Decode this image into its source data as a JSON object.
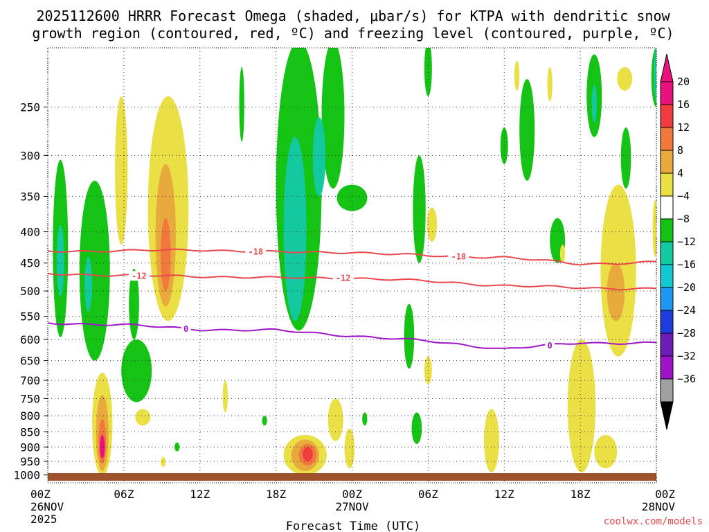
{
  "chart_data": {
    "type": "heatmap",
    "title_line1": "2025112600 HRRR Forecast Omega (shaded, μbar/s) for KTPA with dendritic snow",
    "title_line2": "growth region (contoured, red, ºC) and freezing level (contoured, purple, ºC)",
    "xlabel": "Forecast Time (UTC)",
    "credit": "coolwx.com/models",
    "x_range_hours": [
      0,
      48
    ],
    "x_ticks": [
      {
        "h": 0,
        "label": "00Z",
        "sub1": "26NOV",
        "sub2": "2025"
      },
      {
        "h": 6,
        "label": "06Z"
      },
      {
        "h": 12,
        "label": "12Z"
      },
      {
        "h": 18,
        "label": "18Z"
      },
      {
        "h": 24,
        "label": "00Z",
        "sub1": "27NOV"
      },
      {
        "h": 30,
        "label": "06Z"
      },
      {
        "h": 36,
        "label": "12Z"
      },
      {
        "h": 42,
        "label": "18Z"
      },
      {
        "h": 48,
        "label": "00Z",
        "sub1": "28NOV"
      }
    ],
    "y_ticks_hpa": [
      250,
      300,
      350,
      400,
      450,
      500,
      550,
      600,
      650,
      700,
      750,
      800,
      850,
      900,
      950,
      1000
    ],
    "y_range_hpa": [
      200,
      1030
    ],
    "colorbar": {
      "labels": [
        "20",
        "16",
        "12",
        "8",
        "4",
        "−4",
        "−8",
        "−12",
        "−16",
        "−20",
        "−24",
        "−28",
        "−32",
        "−36"
      ],
      "bins": [
        {
          "lo": 20,
          "hi": 24,
          "color": "#e8127c"
        },
        {
          "lo": 16,
          "hi": 20,
          "color": "#f03c3c"
        },
        {
          "lo": 12,
          "hi": 16,
          "color": "#f0783c"
        },
        {
          "lo": 8,
          "hi": 12,
          "color": "#e8aa3c"
        },
        {
          "lo": 4,
          "hi": 8,
          "color": "#ebdf46"
        },
        {
          "lo": -4,
          "hi": 4,
          "color": "#ffffff"
        },
        {
          "lo": -8,
          "hi": -4,
          "color": "#14c314"
        },
        {
          "lo": -12,
          "hi": -8,
          "color": "#14c8a0"
        },
        {
          "lo": -16,
          "hi": -12,
          "color": "#14c8d2"
        },
        {
          "lo": -20,
          "hi": -16,
          "color": "#1e96f0"
        },
        {
          "lo": -24,
          "hi": -20,
          "color": "#1e3cdc"
        },
        {
          "lo": -28,
          "hi": -24,
          "color": "#6e1eb4"
        },
        {
          "lo": -32,
          "hi": -28,
          "color": "#a014c8"
        },
        {
          "lo": -36,
          "hi": -32,
          "color": "#a0a0a0"
        }
      ],
      "top_arrow_color": "#e8127c",
      "bottom_arrow_color": "#000000"
    },
    "contours": [
      {
        "name": "minus18",
        "label": "-18",
        "color": "#e8484e",
        "x": [
          0,
          6,
          12,
          18,
          24,
          30,
          36,
          42,
          48
        ],
        "p": [
          430,
          430,
          428,
          432,
          432,
          438,
          440,
          452,
          448
        ],
        "label_hours": [
          16.4,
          32.4
        ]
      },
      {
        "name": "minus12",
        "label": "-12",
        "color": "#e8484e",
        "x": [
          0,
          6,
          12,
          18,
          24,
          30,
          36,
          42,
          48
        ],
        "p": [
          468,
          472,
          473,
          476,
          476,
          482,
          490,
          494,
          496
        ],
        "label_hours": [
          7.2,
          23.3
        ]
      },
      {
        "name": "zero",
        "label": "0",
        "color": "#a014c8",
        "x": [
          0,
          6,
          12,
          18,
          24,
          30,
          36,
          42,
          48
        ],
        "p": [
          564,
          568,
          578,
          580,
          592,
          604,
          622,
          608,
          608
        ],
        "label_hours": [
          10.9,
          39.6
        ]
      }
    ],
    "omega_regions": [
      {
        "value": -6,
        "t": 1.0,
        "p0": 305,
        "p1": 595,
        "w": 0.6
      },
      {
        "value": -10,
        "t": 1.0,
        "p0": 390,
        "p1": 510,
        "w": 0.3
      },
      {
        "value": -6,
        "t": 3.7,
        "p0": 330,
        "p1": 650,
        "w": 1.2
      },
      {
        "value": -10,
        "t": 3.2,
        "p0": 440,
        "p1": 540,
        "w": 0.3
      },
      {
        "value": -6,
        "t": 7.0,
        "p0": 600,
        "p1": 760,
        "w": 1.2
      },
      {
        "value": -6,
        "t": 6.8,
        "p0": 460,
        "p1": 600,
        "w": 0.4
      },
      {
        "value": -6,
        "t": 15.3,
        "p0": 215,
        "p1": 285,
        "w": 0.2
      },
      {
        "value": -6,
        "t": 19.8,
        "p0": 195,
        "p1": 580,
        "w": 1.8
      },
      {
        "value": -6,
        "t": 22.5,
        "p0": 195,
        "p1": 340,
        "w": 0.9
      },
      {
        "value": -10,
        "t": 19.5,
        "p0": 280,
        "p1": 560,
        "w": 0.9
      },
      {
        "value": -10,
        "t": 21.4,
        "p0": 260,
        "p1": 350,
        "w": 0.5
      },
      {
        "value": -6,
        "t": 24.0,
        "p0": 335,
        "p1": 370,
        "w": 1.2
      },
      {
        "value": -6,
        "t": 28.5,
        "p0": 525,
        "p1": 670,
        "w": 0.4
      },
      {
        "value": -6,
        "t": 29.3,
        "p0": 300,
        "p1": 450,
        "w": 0.5
      },
      {
        "value": -6,
        "t": 30.0,
        "p0": 195,
        "p1": 240,
        "w": 0.3
      },
      {
        "value": -6,
        "t": 36.0,
        "p0": 270,
        "p1": 310,
        "w": 0.3
      },
      {
        "value": -6,
        "t": 37.8,
        "p0": 225,
        "p1": 330,
        "w": 0.6
      },
      {
        "value": -6,
        "t": 40.2,
        "p0": 380,
        "p1": 450,
        "w": 0.6
      },
      {
        "value": -6,
        "t": 43.1,
        "p0": 205,
        "p1": 280,
        "w": 0.6
      },
      {
        "value": -10,
        "t": 43.1,
        "p0": 230,
        "p1": 265,
        "w": 0.2
      },
      {
        "value": -6,
        "t": 45.6,
        "p0": 270,
        "p1": 340,
        "w": 0.4
      },
      {
        "value": -6,
        "t": 48.0,
        "p0": 200,
        "p1": 250,
        "w": 0.4
      },
      {
        "value": -10,
        "t": 48.0,
        "p0": 200,
        "p1": 245,
        "w": 0.2
      },
      {
        "value": -6,
        "t": 29.1,
        "p0": 790,
        "p1": 890,
        "w": 0.4
      },
      {
        "value": -6,
        "t": 25.0,
        "p0": 790,
        "p1": 830,
        "w": 0.2
      },
      {
        "value": -6,
        "t": 17.1,
        "p0": 800,
        "p1": 830,
        "w": 0.2
      },
      {
        "value": -6,
        "t": 10.2,
        "p0": 885,
        "p1": 915,
        "w": 0.2
      },
      {
        "value": 6,
        "t": 5.8,
        "p0": 240,
        "p1": 420,
        "w": 0.5
      },
      {
        "value": 6,
        "t": 9.5,
        "p0": 240,
        "p1": 560,
        "w": 1.6
      },
      {
        "value": 10,
        "t": 9.3,
        "p0": 310,
        "p1": 530,
        "w": 0.8
      },
      {
        "value": 14,
        "t": 9.3,
        "p0": 380,
        "p1": 500,
        "w": 0.4
      },
      {
        "value": 6,
        "t": 4.3,
        "p0": 680,
        "p1": 1005,
        "w": 0.8
      },
      {
        "value": 10,
        "t": 4.3,
        "p0": 740,
        "p1": 985,
        "w": 0.5
      },
      {
        "value": 14,
        "t": 4.3,
        "p0": 810,
        "p1": 960,
        "w": 0.3
      },
      {
        "value": 22,
        "t": 4.3,
        "p0": 860,
        "p1": 940,
        "w": 0.2
      },
      {
        "value": 6,
        "t": 7.5,
        "p0": 780,
        "p1": 830,
        "w": 0.6
      },
      {
        "value": 6,
        "t": 9.1,
        "p0": 935,
        "p1": 970,
        "w": 0.2
      },
      {
        "value": 6,
        "t": 14.0,
        "p0": 700,
        "p1": 790,
        "w": 0.2
      },
      {
        "value": 6,
        "t": 20.3,
        "p0": 860,
        "p1": 1000,
        "w": 1.7
      },
      {
        "value": 10,
        "t": 20.3,
        "p0": 875,
        "p1": 985,
        "w": 1.1
      },
      {
        "value": 14,
        "t": 20.5,
        "p0": 890,
        "p1": 965,
        "w": 0.7
      },
      {
        "value": 18,
        "t": 20.5,
        "p0": 900,
        "p1": 950,
        "w": 0.4
      },
      {
        "value": 6,
        "t": 22.7,
        "p0": 750,
        "p1": 880,
        "w": 0.6
      },
      {
        "value": 6,
        "t": 23.8,
        "p0": 840,
        "p1": 975,
        "w": 0.4
      },
      {
        "value": 6,
        "t": 30.3,
        "p0": 365,
        "p1": 415,
        "w": 0.4
      },
      {
        "value": 6,
        "t": 30.0,
        "p0": 640,
        "p1": 710,
        "w": 0.3
      },
      {
        "value": 6,
        "t": 35.0,
        "p0": 780,
        "p1": 990,
        "w": 0.6
      },
      {
        "value": 6,
        "t": 37.0,
        "p0": 210,
        "p1": 235,
        "w": 0.2
      },
      {
        "value": 6,
        "t": 39.6,
        "p0": 215,
        "p1": 245,
        "w": 0.2
      },
      {
        "value": 6,
        "t": 40.6,
        "p0": 420,
        "p1": 450,
        "w": 0.2
      },
      {
        "value": 6,
        "t": 42.1,
        "p0": 600,
        "p1": 990,
        "w": 1.1
      },
      {
        "value": 6,
        "t": 45.0,
        "p0": 335,
        "p1": 640,
        "w": 1.4
      },
      {
        "value": 10,
        "t": 44.8,
        "p0": 450,
        "p1": 560,
        "w": 0.7
      },
      {
        "value": 6,
        "t": 45.5,
        "p0": 215,
        "p1": 235,
        "w": 0.6
      },
      {
        "value": 6,
        "t": 44.0,
        "p0": 860,
        "p1": 975,
        "w": 0.9
      },
      {
        "value": 6,
        "t": 47.9,
        "p0": 355,
        "p1": 440,
        "w": 0.2
      }
    ]
  }
}
